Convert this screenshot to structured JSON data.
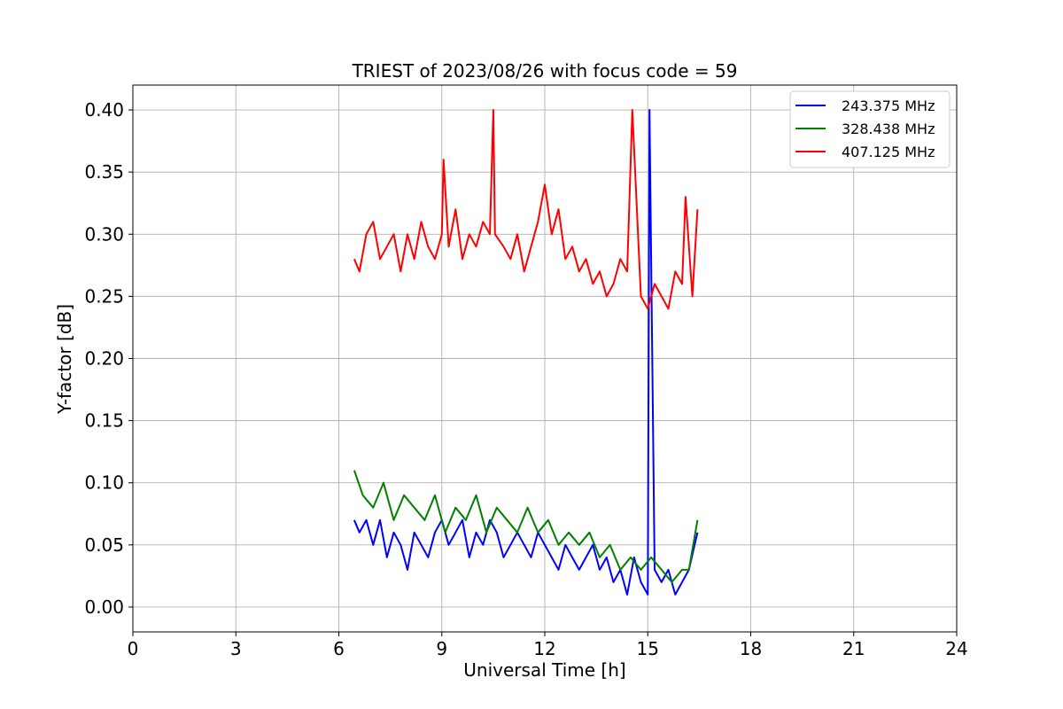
{
  "chart_data": {
    "type": "line",
    "title": "TRIEST of 2023/08/26 with focus code = 59",
    "xlabel": "Universal Time [h]",
    "ylabel": "Y-factor [dB]",
    "xlim": [
      0,
      24
    ],
    "ylim": [
      -0.02,
      0.42
    ],
    "x_ticks": [
      0,
      3,
      6,
      9,
      12,
      15,
      18,
      21,
      24
    ],
    "y_ticks": [
      0.0,
      0.05,
      0.1,
      0.15,
      0.2,
      0.25,
      0.3,
      0.35,
      0.4
    ],
    "x_tick_labels": [
      "0",
      "3",
      "6",
      "9",
      "12",
      "15",
      "18",
      "21",
      "24"
    ],
    "y_tick_labels": [
      "0.00",
      "0.05",
      "0.10",
      "0.15",
      "0.20",
      "0.25",
      "0.30",
      "0.35",
      "0.40"
    ],
    "grid": true,
    "legend_position": "top-right",
    "series": [
      {
        "name": "243.375 MHz",
        "color": "#0000ff",
        "x": [
          6.45,
          6.6,
          6.8,
          7.0,
          7.2,
          7.4,
          7.6,
          7.8,
          8.0,
          8.2,
          8.4,
          8.6,
          8.8,
          9.0,
          9.2,
          9.4,
          9.6,
          9.8,
          10.0,
          10.2,
          10.4,
          10.6,
          10.8,
          11.0,
          11.2,
          11.4,
          11.6,
          11.8,
          12.0,
          12.2,
          12.4,
          12.6,
          12.8,
          13.0,
          13.2,
          13.4,
          13.6,
          13.8,
          14.0,
          14.2,
          14.4,
          14.6,
          14.8,
          15.0,
          15.05,
          15.2,
          15.4,
          15.6,
          15.8,
          16.0,
          16.2,
          16.45
        ],
        "y": [
          0.07,
          0.06,
          0.07,
          0.05,
          0.07,
          0.04,
          0.06,
          0.05,
          0.03,
          0.06,
          0.05,
          0.04,
          0.06,
          0.07,
          0.05,
          0.06,
          0.07,
          0.04,
          0.06,
          0.05,
          0.07,
          0.06,
          0.04,
          0.05,
          0.06,
          0.05,
          0.04,
          0.06,
          0.05,
          0.04,
          0.03,
          0.05,
          0.04,
          0.03,
          0.04,
          0.05,
          0.03,
          0.04,
          0.02,
          0.03,
          0.01,
          0.04,
          0.02,
          0.01,
          0.4,
          0.03,
          0.02,
          0.03,
          0.01,
          0.02,
          0.03,
          0.06
        ]
      },
      {
        "name": "328.438 MHz",
        "color": "#008000",
        "x": [
          6.45,
          6.7,
          7.0,
          7.3,
          7.6,
          7.9,
          8.2,
          8.5,
          8.8,
          9.1,
          9.4,
          9.7,
          10.0,
          10.3,
          10.6,
          10.9,
          11.2,
          11.5,
          11.8,
          12.1,
          12.4,
          12.7,
          13.0,
          13.3,
          13.6,
          13.9,
          14.2,
          14.5,
          14.8,
          15.1,
          15.4,
          15.7,
          16.0,
          16.2,
          16.45
        ],
        "y": [
          0.11,
          0.09,
          0.08,
          0.1,
          0.07,
          0.09,
          0.08,
          0.07,
          0.09,
          0.06,
          0.08,
          0.07,
          0.09,
          0.06,
          0.08,
          0.07,
          0.06,
          0.08,
          0.06,
          0.07,
          0.05,
          0.06,
          0.05,
          0.06,
          0.04,
          0.05,
          0.03,
          0.04,
          0.03,
          0.04,
          0.03,
          0.02,
          0.03,
          0.03,
          0.07
        ]
      },
      {
        "name": "407.125 MHz",
        "color": "#ff0000",
        "x": [
          6.45,
          6.6,
          6.8,
          7.0,
          7.2,
          7.4,
          7.6,
          7.8,
          8.0,
          8.2,
          8.4,
          8.6,
          8.8,
          9.0,
          9.05,
          9.2,
          9.4,
          9.6,
          9.8,
          10.0,
          10.2,
          10.4,
          10.5,
          10.55,
          10.8,
          11.0,
          11.2,
          11.4,
          11.6,
          11.8,
          12.0,
          12.2,
          12.4,
          12.6,
          12.8,
          13.0,
          13.2,
          13.4,
          13.6,
          13.8,
          14.0,
          14.2,
          14.4,
          14.55,
          14.8,
          15.0,
          15.2,
          15.4,
          15.6,
          15.8,
          16.0,
          16.1,
          16.3,
          16.45
        ],
        "y": [
          0.28,
          0.27,
          0.3,
          0.31,
          0.28,
          0.29,
          0.3,
          0.27,
          0.3,
          0.28,
          0.31,
          0.29,
          0.28,
          0.3,
          0.36,
          0.29,
          0.32,
          0.28,
          0.3,
          0.29,
          0.31,
          0.3,
          0.4,
          0.3,
          0.29,
          0.28,
          0.3,
          0.27,
          0.29,
          0.31,
          0.34,
          0.3,
          0.32,
          0.28,
          0.29,
          0.27,
          0.28,
          0.26,
          0.27,
          0.25,
          0.26,
          0.28,
          0.27,
          0.4,
          0.25,
          0.24,
          0.26,
          0.25,
          0.24,
          0.27,
          0.26,
          0.33,
          0.25,
          0.32
        ]
      }
    ]
  }
}
